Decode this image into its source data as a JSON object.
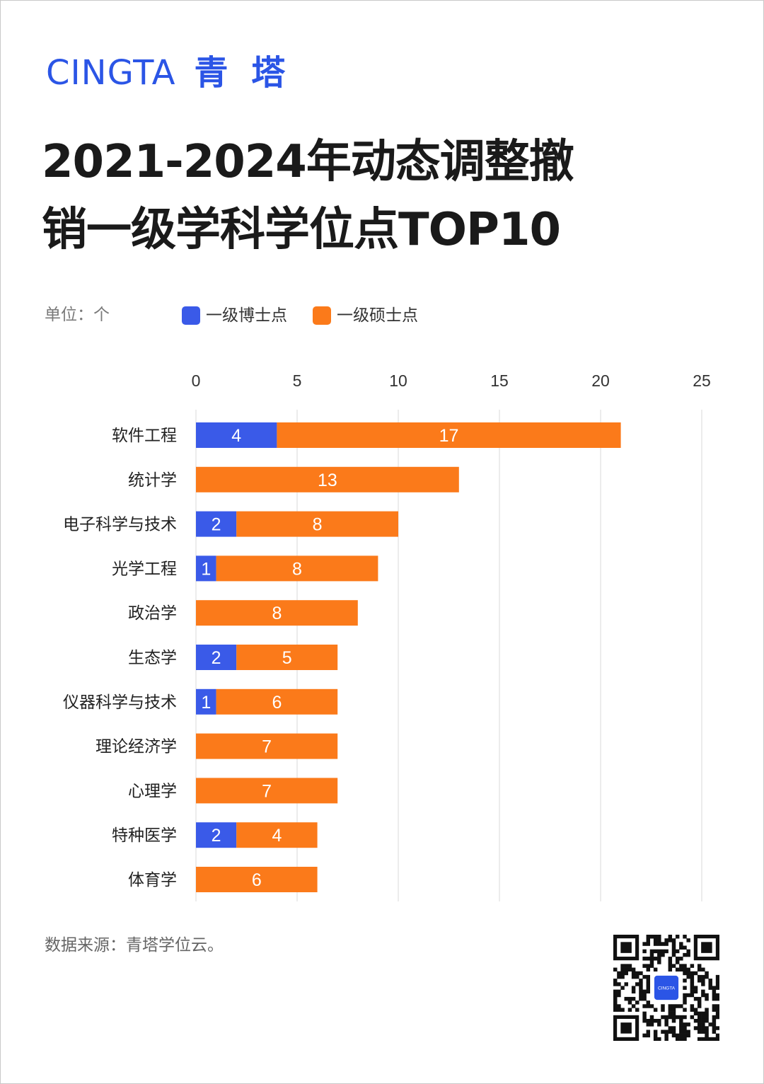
{
  "brand": {
    "logo_en": "CINGTA",
    "logo_cn": "青 塔",
    "color": "#2b55e6",
    "qr_center_label": "CINGTA"
  },
  "title_lines": [
    "2021-2024年动态调整撤",
    "销一级学科学位点TOP10"
  ],
  "unit_label": "单位：个",
  "legend": [
    {
      "label": "一级博士点",
      "color": "#3a5ae8"
    },
    {
      "label": "一级硕士点",
      "color": "#fb7a1a"
    }
  ],
  "source": "数据来源：青塔学位云。",
  "chart_data": {
    "type": "bar",
    "orientation": "horizontal",
    "stacked": true,
    "categories": [
      "软件工程",
      "统计学",
      "电子科学与技术",
      "光学工程",
      "政治学",
      "生态学",
      "仪器科学与技术",
      "理论经济学",
      "心理学",
      "特种医学",
      "体育学"
    ],
    "series": [
      {
        "name": "一级博士点",
        "color": "#3a5ae8",
        "values": [
          4,
          0,
          2,
          1,
          0,
          2,
          1,
          0,
          0,
          2,
          0
        ]
      },
      {
        "name": "一级硕士点",
        "color": "#fb7a1a",
        "values": [
          17,
          13,
          8,
          8,
          8,
          5,
          6,
          7,
          7,
          4,
          6
        ]
      }
    ],
    "xlim": [
      0,
      25
    ],
    "xticks": [
      0,
      5,
      10,
      15,
      20,
      25
    ],
    "grid": true,
    "legend_position": "top-left"
  }
}
